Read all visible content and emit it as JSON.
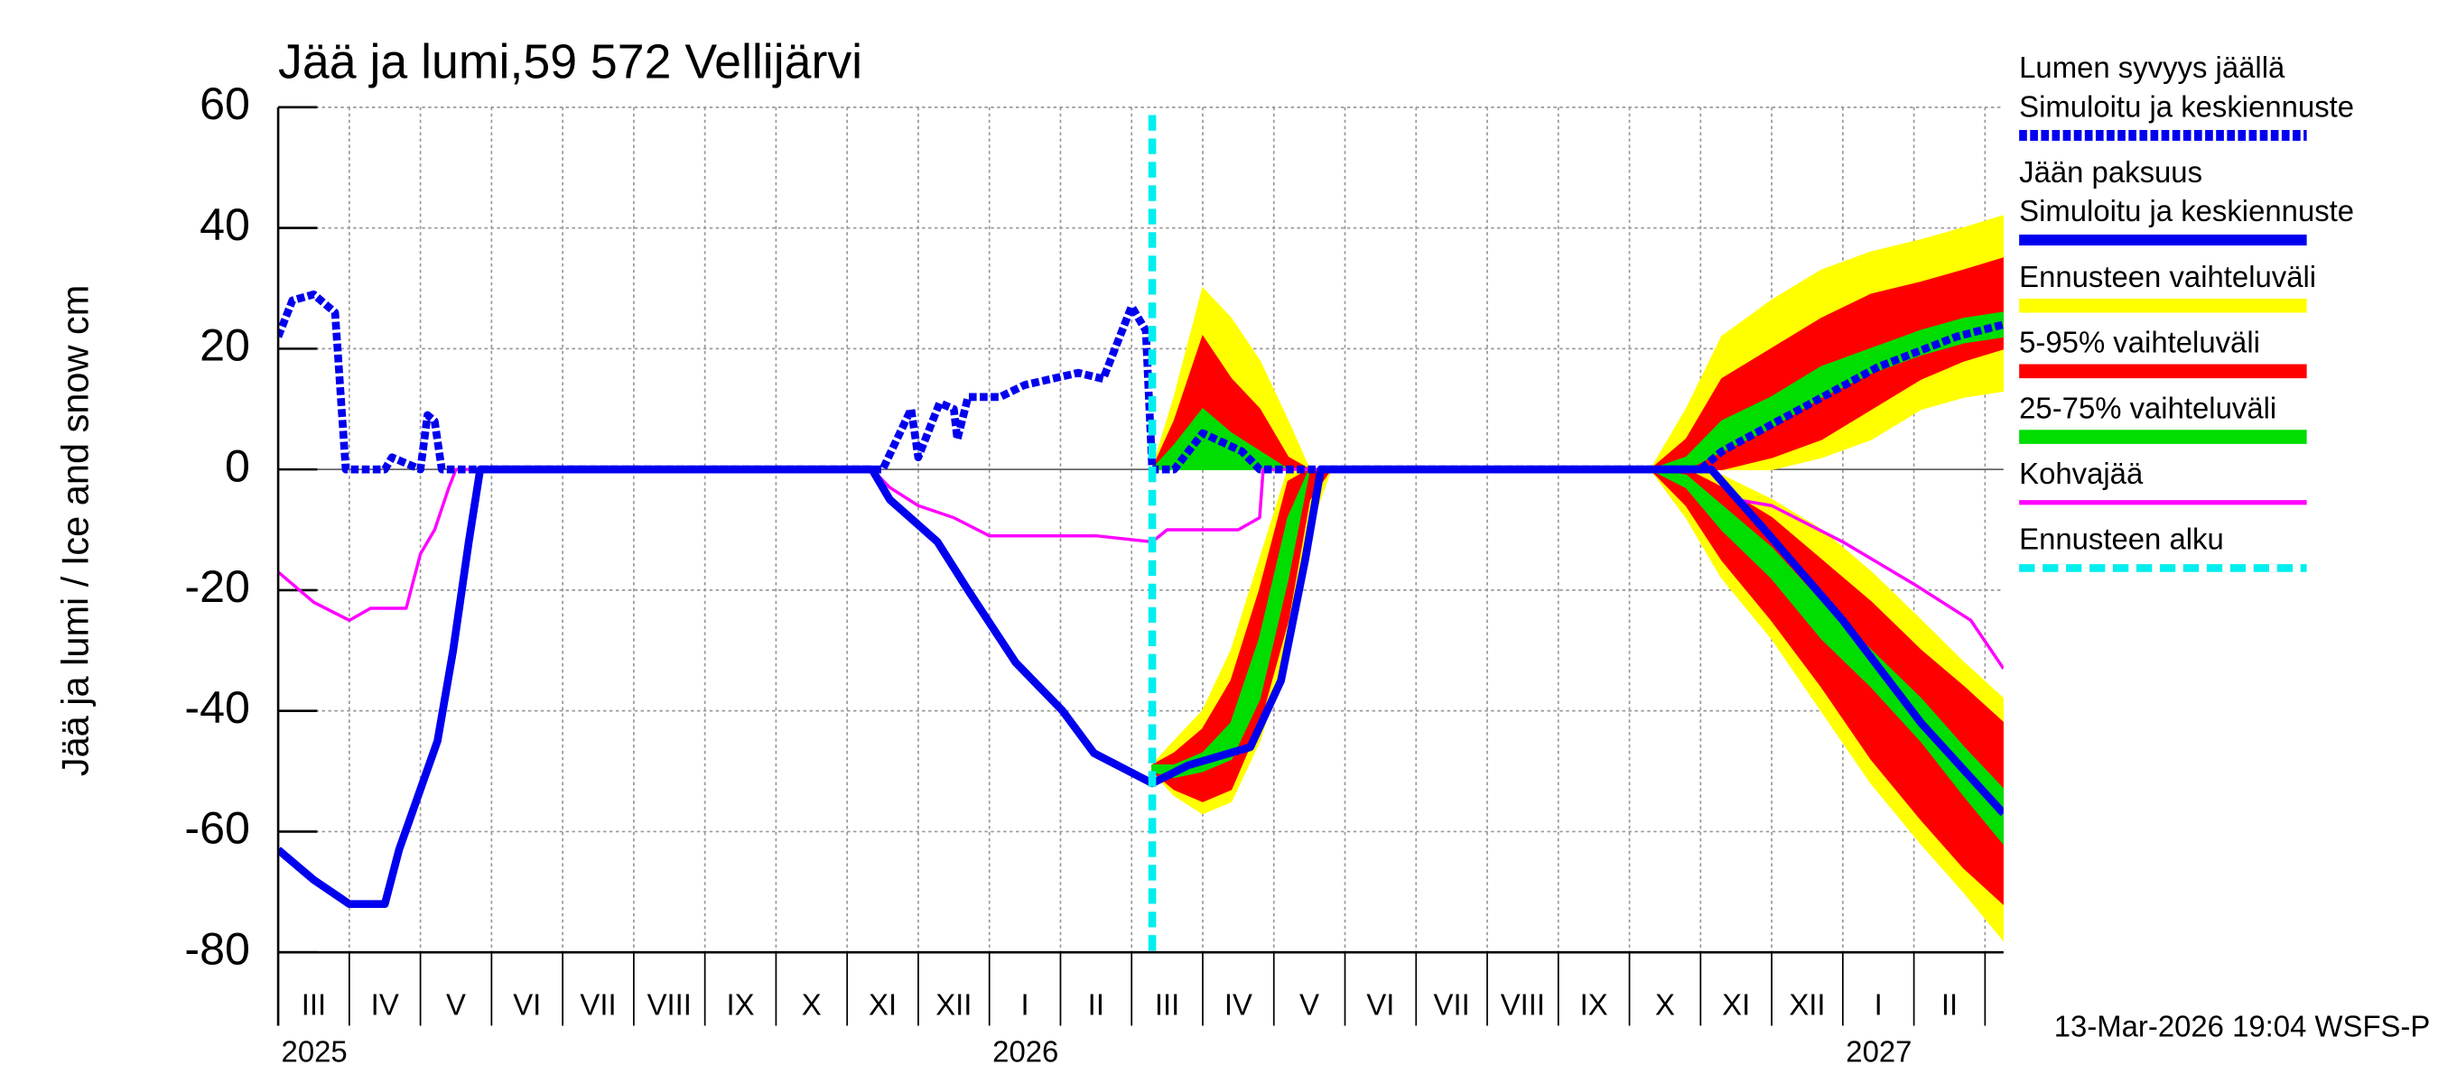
{
  "chart_data": {
    "type": "ice-snow",
    "title": "Jää ja lumi,59 572 Vellijärvi",
    "ylabel": "Jää ja lumi / Ice and snow    cm",
    "footer": "13-Mar-2026 19:04 WSFS-P",
    "ylim": [
      -80,
      60
    ],
    "yticks": [
      -80,
      -60,
      -40,
      -20,
      0,
      20,
      40,
      60
    ],
    "xlim": [
      0,
      24.26
    ],
    "xgrid": [
      0,
      1,
      2,
      3,
      4,
      5,
      6,
      7,
      8,
      9,
      10,
      11,
      12,
      13,
      14,
      15,
      16,
      17,
      18,
      19,
      20,
      21,
      22,
      23,
      24
    ],
    "xticks": [
      {
        "value": 0.5,
        "label": "III"
      },
      {
        "value": 1.5,
        "label": "IV"
      },
      {
        "value": 2.5,
        "label": "V"
      },
      {
        "value": 3.5,
        "label": "VI"
      },
      {
        "value": 4.5,
        "label": "VII"
      },
      {
        "value": 5.5,
        "label": "VIII"
      },
      {
        "value": 6.5,
        "label": "IX"
      },
      {
        "value": 7.5,
        "label": "X"
      },
      {
        "value": 8.5,
        "label": "XI"
      },
      {
        "value": 9.5,
        "label": "XII"
      },
      {
        "value": 10.5,
        "label": "I"
      },
      {
        "value": 11.5,
        "label": "II"
      },
      {
        "value": 12.5,
        "label": "III"
      },
      {
        "value": 13.5,
        "label": "IV"
      },
      {
        "value": 14.5,
        "label": "V"
      },
      {
        "value": 15.5,
        "label": "VI"
      },
      {
        "value": 16.5,
        "label": "VII"
      },
      {
        "value": 17.5,
        "label": "VIII"
      },
      {
        "value": 18.5,
        "label": "IX"
      },
      {
        "value": 19.5,
        "label": "X"
      },
      {
        "value": 20.5,
        "label": "XI"
      },
      {
        "value": 21.5,
        "label": "XII"
      },
      {
        "value": 22.5,
        "label": "I"
      },
      {
        "value": 23.5,
        "label": "II"
      }
    ],
    "years": [
      {
        "value": 0,
        "label": "2025"
      },
      {
        "value": 10,
        "label": "2026"
      },
      {
        "value": 22,
        "label": "2027"
      }
    ],
    "bands": {
      "x": [
        12.29,
        12.6,
        13.0,
        13.4,
        13.8,
        14.2,
        14.5,
        14.8,
        17,
        19.3,
        19.8,
        20.3,
        21.0,
        21.7,
        22.4,
        23.1,
        23.7,
        24.26
      ],
      "series": [
        {
          "name": "Ennusteen vaihteluväli",
          "color": "#ffff00",
          "snow_low": [
            0,
            0,
            0,
            0,
            0,
            0,
            0,
            0,
            null,
            0,
            0,
            0,
            0,
            2,
            5,
            10,
            12,
            13
          ],
          "snow_high": [
            0,
            12,
            30,
            25,
            18,
            8,
            0,
            0,
            null,
            0,
            10,
            22,
            28,
            33,
            36,
            38,
            40,
            42
          ],
          "ice_low": [
            -50,
            -54,
            -57,
            -55,
            -45,
            -30,
            -10,
            0,
            null,
            0,
            -8,
            -18,
            -28,
            -40,
            -52,
            -62,
            -70,
            -78
          ],
          "ice_high": [
            -49,
            -45,
            -40,
            -30,
            -15,
            0,
            0,
            0,
            null,
            0,
            0,
            -1,
            -5,
            -10,
            -17,
            -25,
            -32,
            -38
          ]
        },
        {
          "name": "5-95% vaihteluväli",
          "color": "#ff0000",
          "snow_low": [
            0,
            0,
            0,
            0,
            0,
            0,
            0,
            0,
            null,
            0,
            0,
            0,
            2,
            5,
            10,
            15,
            18,
            20
          ],
          "snow_high": [
            0,
            8,
            22,
            15,
            10,
            2,
            0,
            0,
            null,
            0,
            5,
            15,
            20,
            25,
            29,
            31,
            33,
            35
          ],
          "ice_low": [
            -50,
            -53,
            -55,
            -53,
            -42,
            -25,
            -5,
            0,
            null,
            0,
            -6,
            -15,
            -25,
            -36,
            -48,
            -58,
            -66,
            -72
          ],
          "ice_high": [
            -49,
            -47,
            -43,
            -35,
            -20,
            -2,
            0,
            0,
            null,
            0,
            0,
            -3,
            -8,
            -15,
            -22,
            -30,
            -36,
            -42
          ]
        },
        {
          "name": "25-75% vaihteluväli",
          "color": "#00dd00",
          "snow_low": [
            0,
            0,
            0,
            0,
            0,
            0,
            0,
            0,
            null,
            0,
            0,
            3,
            7,
            12,
            16,
            19,
            21,
            22
          ],
          "snow_high": [
            0,
            4,
            10,
            6,
            3,
            0,
            0,
            0,
            null,
            0,
            2,
            8,
            12,
            17,
            20,
            23,
            25,
            26
          ],
          "ice_low": [
            -50,
            -51,
            -50,
            -48,
            -38,
            -18,
            0,
            0,
            null,
            0,
            -3,
            -10,
            -18,
            -28,
            -36,
            -45,
            -54,
            -62
          ],
          "ice_high": [
            -49,
            -49,
            -47,
            -42,
            -28,
            -8,
            0,
            0,
            null,
            0,
            -1,
            -6,
            -13,
            -22,
            -30,
            -38,
            -46,
            -53
          ]
        }
      ]
    },
    "series": [
      {
        "group": "Lumen syvyys jäällä",
        "name": "Simuloitu ja keskiennuste",
        "color": "#0000ee",
        "dashed": true,
        "x": [
          0,
          0.2,
          0.5,
          0.8,
          0.95,
          1.0,
          1.5,
          1.6,
          2.0,
          2.1,
          2.2,
          2.3,
          8.5,
          8.9,
          9.0,
          9.3,
          9.5,
          9.55,
          9.7,
          10.15,
          10.5,
          11.25,
          11.6,
          12.0,
          12.2,
          12.29,
          12.6,
          13.0,
          13.55,
          13.8,
          20.0,
          20.3,
          21.4,
          22.5,
          23.6,
          24.26
        ],
        "values": [
          22,
          28,
          29,
          26,
          0,
          0,
          0,
          2,
          0,
          9,
          8,
          0,
          0,
          10,
          2,
          11,
          10,
          5,
          12,
          12,
          14,
          16,
          15,
          27,
          23,
          0,
          0,
          6,
          3,
          0,
          0,
          3,
          10,
          17,
          22,
          24
        ]
      },
      {
        "group": "Jään paksuus",
        "name": "Simuloitu ja keskiennuste",
        "color": "#0000ee",
        "dashed": false,
        "x": [
          0,
          0.5,
          1.0,
          1.5,
          1.7,
          1.85,
          2.0,
          2.24,
          2.46,
          2.68,
          2.84,
          8.35,
          8.6,
          9.27,
          9.7,
          10.37,
          11.03,
          11.47,
          12.29,
          12.8,
          13.67,
          14.1,
          14.44,
          14.66,
          20.15,
          20.9,
          22.0,
          23.1,
          24.26
        ],
        "values": [
          -63,
          -68,
          -72,
          -72,
          -63,
          -58,
          -53,
          -45,
          -30,
          -12,
          0,
          0,
          -5,
          -12,
          -20,
          -32,
          -40,
          -47,
          -52,
          -49,
          -46,
          -35,
          -15,
          0,
          0,
          -10,
          -25,
          -42,
          -57
        ]
      },
      {
        "name": "Kohvajää",
        "color": "#ff00ff",
        "dashed": false,
        "thin": true,
        "x": [
          0,
          0.5,
          1.0,
          1.3,
          1.8,
          2.0,
          2.2,
          2.4,
          2.5,
          8.35,
          8.6,
          9.0,
          9.5,
          10.0,
          11.5,
          12.29,
          12.5,
          13.5,
          13.8,
          13.85,
          20.2,
          20.5,
          21.0,
          22.0,
          23.0,
          23.8,
          24.26
        ],
        "values": [
          -17,
          -22,
          -25,
          -23,
          -23,
          -14,
          -10,
          -3,
          0,
          0,
          -3,
          -6,
          -8,
          -11,
          -11,
          -12,
          -10,
          -10,
          -8,
          0,
          0,
          -5,
          -6,
          -12,
          -19,
          -25,
          -33
        ]
      }
    ],
    "forecast_start": {
      "name": "Ennusteen alku",
      "color": "#00eeee",
      "x": 12.29
    }
  }
}
